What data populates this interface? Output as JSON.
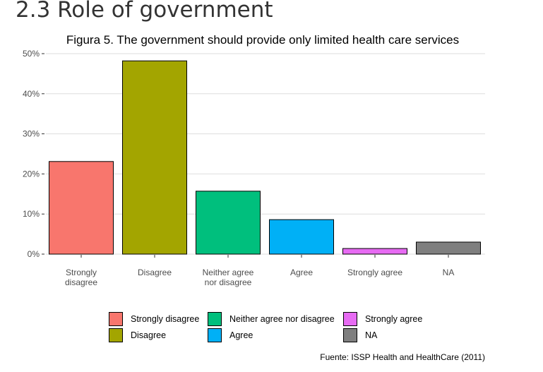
{
  "page": {
    "heading": "2.3 Role of government"
  },
  "chart_data": {
    "type": "bar",
    "title": "Figura 5. The government should provide only limited health care services",
    "caption": "Fuente: ISSP Health and HealthCare (2011)",
    "categories": [
      "Strongly disagree",
      "Disagree",
      "Neither agree nor disagree",
      "Agree",
      "Strongly agree",
      "NA"
    ],
    "tick_labels": [
      [
        "Strongly",
        "disagree"
      ],
      [
        "Disagree"
      ],
      [
        "Neither agree",
        "nor disagree"
      ],
      [
        "Agree"
      ],
      [
        "Strongly agree"
      ],
      [
        "NA"
      ]
    ],
    "values": [
      23.1,
      48.2,
      15.7,
      8.6,
      1.4,
      3.0
    ],
    "colors": [
      "#F8766D",
      "#A3A500",
      "#00BF7D",
      "#00B0F6",
      "#E76BF3",
      "#7F7F7F"
    ],
    "y_unit": "%",
    "ylim": [
      0,
      50
    ],
    "yticks": [
      0,
      10,
      20,
      30,
      40,
      50
    ],
    "ytick_labels": [
      "0%",
      "10%",
      "20%",
      "30%",
      "40%",
      "50%"
    ],
    "grid": true,
    "legend": {
      "placement": "bottom",
      "items": [
        {
          "label": "Strongly disagree",
          "color": "#F8766D"
        },
        {
          "label": "Neither agree nor disagree",
          "color": "#00BF7D"
        },
        {
          "label": "Strongly agree",
          "color": "#E76BF3"
        },
        {
          "label": "Disagree",
          "color": "#A3A500"
        },
        {
          "label": "Agree",
          "color": "#00B0F6"
        },
        {
          "label": "NA",
          "color": "#7F7F7F"
        }
      ]
    }
  }
}
